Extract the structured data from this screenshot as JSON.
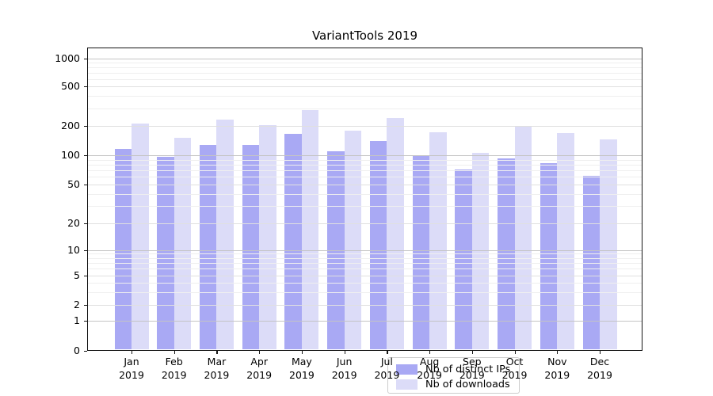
{
  "chart_data": {
    "type": "bar",
    "title": "VariantTools 2019",
    "categories": [
      "Jan 2019",
      "Feb 2019",
      "Mar 2019",
      "Apr 2019",
      "May 2019",
      "Jun 2019",
      "Jul 2019",
      "Aug 2019",
      "Sep 2019",
      "Oct 2019",
      "Nov 2019",
      "Dec 2019"
    ],
    "series": [
      {
        "name": "Nb of distinct IPs",
        "color": "#a9a9f4",
        "values": [
          116,
          96,
          127,
          127,
          165,
          110,
          140,
          100,
          71,
          93,
          83,
          61
        ]
      },
      {
        "name": "Nb of downloads",
        "color": "#dcdcf8",
        "values": [
          212,
          151,
          231,
          206,
          288,
          180,
          243,
          172,
          106,
          200,
          171,
          146
        ]
      }
    ],
    "yscale": "symlog",
    "y_ticks": [
      0,
      1,
      2,
      5,
      10,
      20,
      50,
      100,
      200,
      500,
      1000
    ],
    "ylim": [
      0,
      1200
    ],
    "grid": true,
    "legend_position": "lower center",
    "background_color": "#ffffff"
  }
}
